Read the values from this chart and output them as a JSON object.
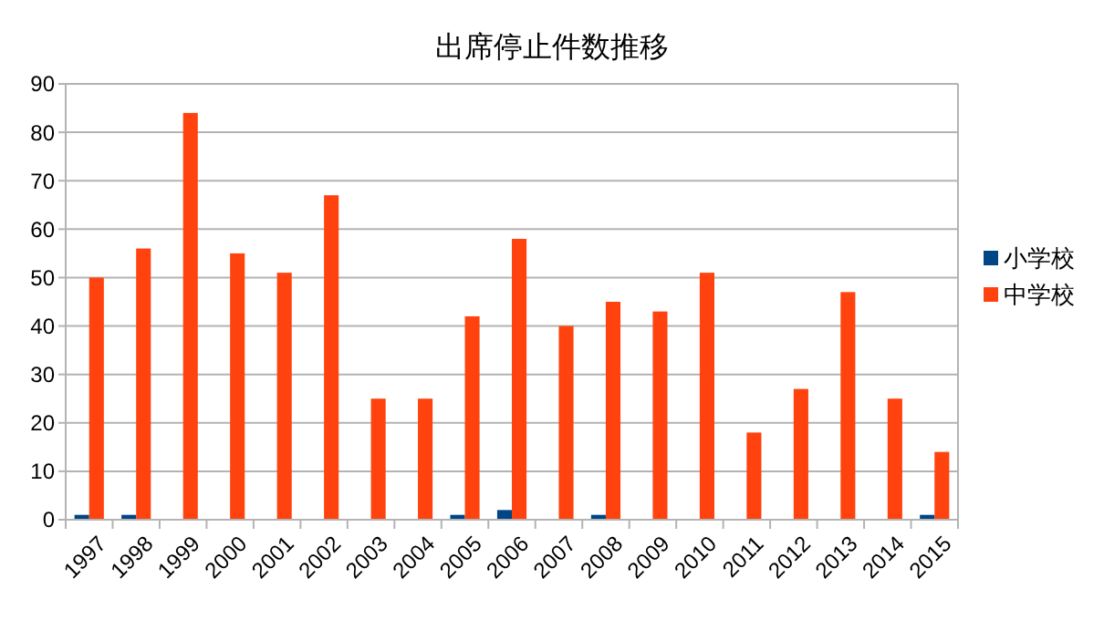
{
  "chart_data": {
    "type": "bar",
    "title": "出席停止件数推移",
    "categories": [
      "1997",
      "1998",
      "1999",
      "2000",
      "2001",
      "2002",
      "2003",
      "2004",
      "2005",
      "2006",
      "2007",
      "2008",
      "2009",
      "2010",
      "2011",
      "2012",
      "2013",
      "2014",
      "2015"
    ],
    "series": [
      {
        "name": "小学校",
        "color": "#004586",
        "values": [
          1,
          1,
          0,
          0,
          0,
          0,
          0,
          0,
          1,
          2,
          0,
          1,
          0,
          0,
          0,
          0,
          0,
          0,
          1
        ]
      },
      {
        "name": "中学校",
        "color": "#ff420e",
        "values": [
          50,
          56,
          84,
          55,
          51,
          67,
          25,
          25,
          42,
          58,
          40,
          45,
          43,
          51,
          18,
          27,
          47,
          25,
          14
        ]
      }
    ],
    "ylim": [
      0,
      90
    ],
    "yticks": [
      0,
      10,
      20,
      30,
      40,
      50,
      60,
      70,
      80,
      90
    ],
    "grid": "y",
    "legend": "right"
  }
}
